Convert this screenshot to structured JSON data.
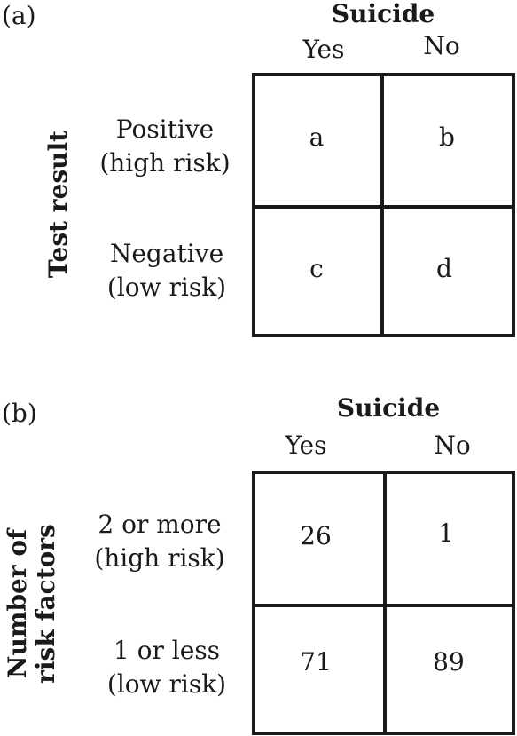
{
  "panel_a": {
    "label": "(a)",
    "column_title": "Suicide",
    "column_labels": [
      "Yes",
      "No"
    ],
    "row_title": "Test result",
    "rows": [
      {
        "line1": "Positive",
        "line2": "(high risk)"
      },
      {
        "line1": "Negative",
        "line2": "(low risk)"
      }
    ],
    "cells": [
      "a",
      "b",
      "c",
      "d"
    ]
  },
  "panel_b": {
    "label": "(b)",
    "column_title": "Suicide",
    "column_labels": [
      "Yes",
      "No"
    ],
    "row_title_line1": "Number of",
    "row_title_line2": "risk factors",
    "rows": [
      {
        "line1": "2 or more",
        "line2": "(high risk)"
      },
      {
        "line1": "1 or less",
        "line2": "(low risk)"
      }
    ],
    "cells": [
      "26",
      "1",
      "71",
      "89"
    ]
  }
}
